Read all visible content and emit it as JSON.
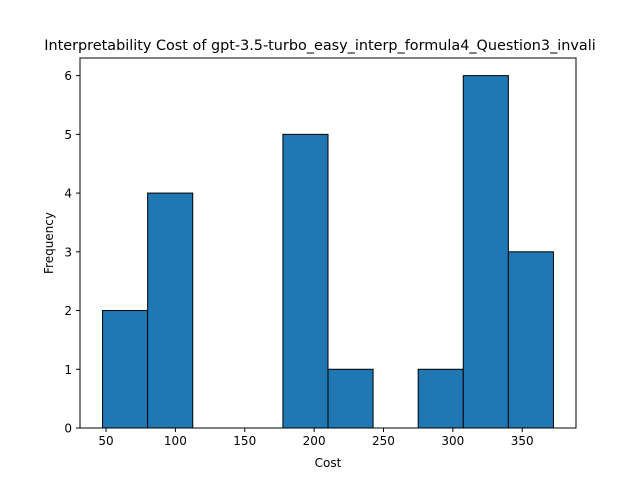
{
  "chart_data": {
    "type": "bar",
    "title": "Interpretability Cost of gpt-3.5-turbo_easy_interp_formula4_Question3_invali",
    "xlabel": "Cost",
    "ylabel": "Frequency",
    "bins": [
      {
        "x0": 47.5,
        "x1": 80.0,
        "value": 2
      },
      {
        "x0": 80.0,
        "x1": 112.5,
        "value": 4
      },
      {
        "x0": 112.5,
        "x1": 145.0,
        "value": 0
      },
      {
        "x0": 145.0,
        "x1": 177.5,
        "value": 0
      },
      {
        "x0": 177.5,
        "x1": 210.0,
        "value": 5
      },
      {
        "x0": 210.0,
        "x1": 242.5,
        "value": 1
      },
      {
        "x0": 242.5,
        "x1": 275.0,
        "value": 0
      },
      {
        "x0": 275.0,
        "x1": 307.5,
        "value": 1
      },
      {
        "x0": 307.5,
        "x1": 340.0,
        "value": 6
      },
      {
        "x0": 340.0,
        "x1": 372.5,
        "value": 3
      }
    ],
    "xlim": [
      31.25,
      388.75
    ],
    "ylim": [
      0,
      6.3
    ],
    "xticks": [
      50,
      100,
      150,
      200,
      250,
      300,
      350
    ],
    "yticks": [
      0,
      1,
      2,
      3,
      4,
      5,
      6
    ],
    "grid": false,
    "bar_color": "#1f77b4",
    "edge_color": "#000000"
  }
}
